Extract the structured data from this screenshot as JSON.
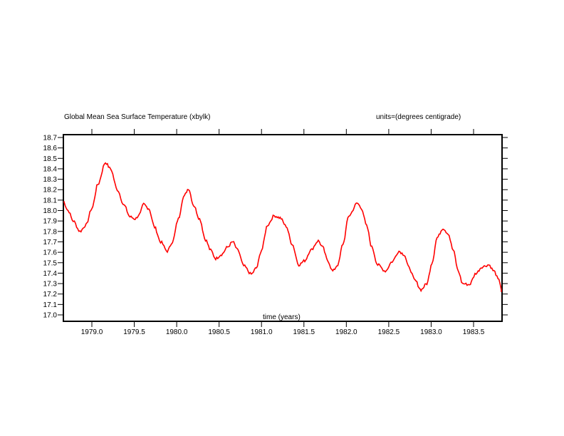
{
  "chart_data": {
    "type": "line",
    "title": "Global Mean Sea Surface Temperature (xbylk)",
    "units_label": "units=(degrees centigrade)",
    "xlabel": "time (years)",
    "ylabel": "",
    "xlim": [
      1978.66,
      1983.84
    ],
    "ylim": [
      16.95,
      18.73
    ],
    "grid": false,
    "line_color": "#ff0000",
    "x_ticks": [
      1979.0,
      1979.5,
      1980.0,
      1980.5,
      1981.0,
      1981.5,
      1982.0,
      1982.5,
      1983.0,
      1983.5
    ],
    "x_tick_labels": [
      "1979.0",
      "1979.5",
      "1980.0",
      "1980.5",
      "1981.0",
      "1981.5",
      "1982.0",
      "1982.5",
      "1983.0",
      "1983.5"
    ],
    "y_ticks": [
      17.0,
      17.1,
      17.2,
      17.3,
      17.4,
      17.5,
      17.6,
      17.7,
      17.8,
      17.9,
      18.0,
      18.1,
      18.2,
      18.3,
      18.4,
      18.5,
      18.6,
      18.7
    ],
    "y_tick_labels": [
      "17.0",
      "17.1",
      "17.2",
      "17.3",
      "17.4",
      "17.5",
      "17.6",
      "17.7",
      "17.8",
      "17.9",
      "18.0",
      "18.1",
      "18.2",
      "18.3",
      "18.4",
      "18.5",
      "18.6",
      "18.7"
    ],
    "series": [
      {
        "name": "Global Mean Sea Surface Temperature",
        "x": [
          1978.66,
          1978.72,
          1978.78,
          1978.86,
          1978.93,
          1979.0,
          1979.07,
          1979.16,
          1979.22,
          1979.3,
          1979.38,
          1979.45,
          1979.51,
          1979.56,
          1979.61,
          1979.67,
          1979.74,
          1979.81,
          1979.89,
          1979.95,
          1980.02,
          1980.08,
          1980.14,
          1980.2,
          1980.27,
          1980.34,
          1980.4,
          1980.46,
          1980.53,
          1980.6,
          1980.66,
          1980.72,
          1980.79,
          1980.88,
          1980.94,
          1981.0,
          1981.07,
          1981.15,
          1981.22,
          1981.29,
          1981.36,
          1981.44,
          1981.51,
          1981.58,
          1981.67,
          1981.72,
          1981.78,
          1981.84,
          1981.9,
          1981.96,
          1982.03,
          1982.13,
          1982.18,
          1982.24,
          1982.3,
          1982.37,
          1982.46,
          1982.54,
          1982.62,
          1982.68,
          1982.74,
          1982.81,
          1982.88,
          1982.95,
          1983.01,
          1983.07,
          1983.14,
          1983.2,
          1983.26,
          1983.32,
          1983.37,
          1983.45,
          1983.53,
          1983.6,
          1983.68,
          1983.74,
          1983.8,
          1983.84
        ],
        "y": [
          18.09,
          18.0,
          17.9,
          17.8,
          17.86,
          18.02,
          18.25,
          18.46,
          18.4,
          18.2,
          18.05,
          17.94,
          17.92,
          17.96,
          18.06,
          18.02,
          17.84,
          17.7,
          17.61,
          17.7,
          17.92,
          18.13,
          18.21,
          18.05,
          17.92,
          17.72,
          17.62,
          17.54,
          17.58,
          17.65,
          17.7,
          17.62,
          17.47,
          17.39,
          17.45,
          17.62,
          17.86,
          17.95,
          17.93,
          17.85,
          17.68,
          17.48,
          17.52,
          17.62,
          17.71,
          17.65,
          17.52,
          17.42,
          17.48,
          17.68,
          17.95,
          18.07,
          18.02,
          17.85,
          17.65,
          17.48,
          17.42,
          17.51,
          17.61,
          17.58,
          17.45,
          17.33,
          17.24,
          17.3,
          17.5,
          17.74,
          17.83,
          17.78,
          17.62,
          17.42,
          17.3,
          17.29,
          17.4,
          17.46,
          17.48,
          17.42,
          17.33,
          17.22
        ]
      }
    ]
  }
}
